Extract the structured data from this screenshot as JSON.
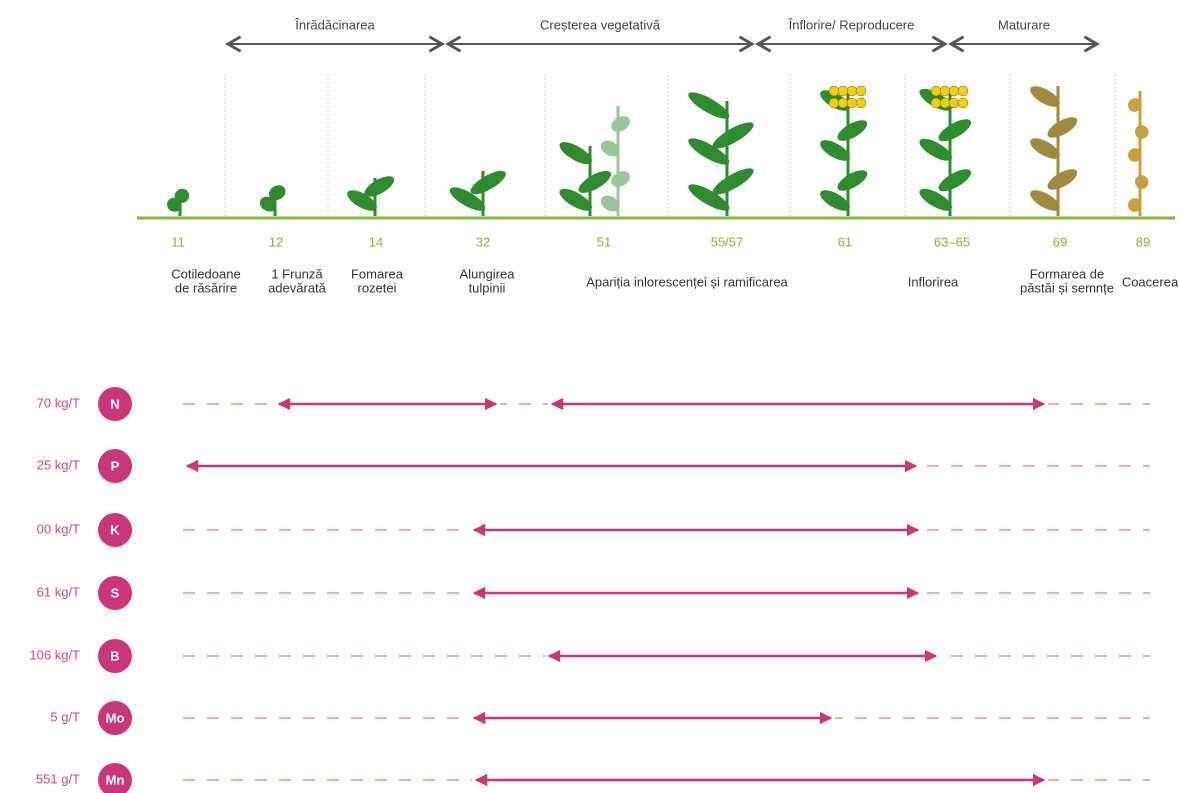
{
  "phases": [
    {
      "label": "Înrădăcinarea"
    },
    {
      "label": "Creșterea vegetativă"
    },
    {
      "label": "Înflorire/ Reproducere"
    },
    {
      "label": "Maturare"
    }
  ],
  "stages": [
    {
      "code": "11",
      "label": [
        "Cotiledoane",
        "de răsărire"
      ]
    },
    {
      "code": "12",
      "label": [
        "1 Frunză",
        "adevărată"
      ]
    },
    {
      "code": "14",
      "label": [
        "Fomarea",
        "rozetei"
      ]
    },
    {
      "code": "32",
      "label": [
        "Alungirea",
        "tulpinii"
      ]
    },
    {
      "code": "51",
      "label": [
        "Apariția inlorescenței și ramificarea"
      ]
    },
    {
      "code": "55/57",
      "label": []
    },
    {
      "code": "61",
      "label": []
    },
    {
      "code": "63–65",
      "label": [
        "Inflorirea"
      ]
    },
    {
      "code": "69",
      "label": [
        "Formarea de",
        "păstăi și semnțe"
      ]
    },
    {
      "code": "89",
      "label": [
        "Coacerea"
      ]
    }
  ],
  "nutrients": [
    {
      "amount": "70 kg/T",
      "symbol": "N"
    },
    {
      "amount": "25 kg/T",
      "symbol": "P"
    },
    {
      "amount": "00 kg/T",
      "symbol": "K"
    },
    {
      "amount": "61 kg/T",
      "symbol": "S"
    },
    {
      "amount": "106 kg/T",
      "symbol": "B"
    },
    {
      "amount": "5 g/T",
      "symbol": "Mo"
    },
    {
      "amount": "551 g/T",
      "symbol": "Mn"
    }
  ]
}
